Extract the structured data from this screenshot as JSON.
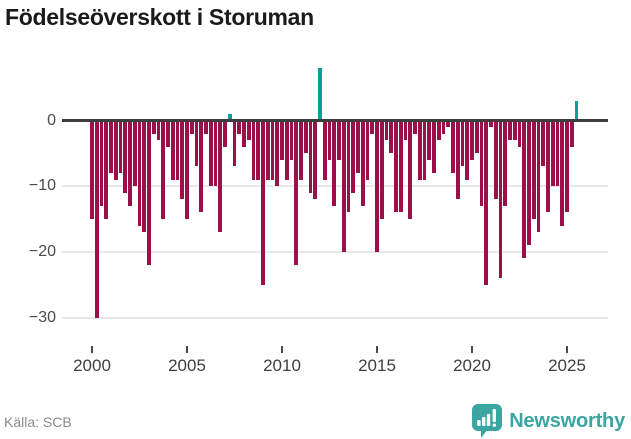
{
  "header": {
    "title": "Födelseöverskott i Storuman"
  },
  "footer": {
    "source_label": "Källa: SCB",
    "brand_name": "Newsworthy"
  },
  "colors": {
    "negative_bar": "#9b1048",
    "positive_bar": "#0b9f98",
    "axis_line": "#3d3d3d",
    "gridline": "#e8e8e8",
    "brand_teal": "#3aa5a1"
  },
  "chart_data": {
    "type": "bar",
    "title": "Födelseöverskott i Storuman",
    "frequency": "quarterly",
    "x_start": "2000 Q1",
    "x_end": "2025 Q3",
    "x_tick_labels": [
      "2000",
      "2005",
      "2010",
      "2015",
      "2020",
      "2025"
    ],
    "y_ticks": [
      0,
      -10,
      -20,
      -30
    ],
    "y_tick_labels": [
      "0",
      "−10",
      "−20",
      "−30"
    ],
    "ylim": [
      -32,
      9
    ],
    "grid": "horizontal",
    "legend": "none",
    "negative_color": "#9b1048",
    "positive_color": "#0b9f98",
    "series": [
      {
        "name": "Födelseöverskott",
        "values": [
          -15,
          -30,
          -13,
          -15,
          -8,
          -9,
          -8,
          -11,
          -13,
          -10,
          -16,
          -17,
          -22,
          -2,
          -3,
          -15,
          -4,
          -9,
          -9,
          -12,
          -15,
          -2,
          -7,
          -14,
          -2,
          -10,
          -10,
          -17,
          -4,
          1,
          -7,
          -2,
          -4,
          -3,
          -9,
          -9,
          -25,
          -9,
          -9,
          -10,
          -6,
          -9,
          -6,
          -22,
          -9,
          -5,
          -11,
          -12,
          8,
          -9,
          -6,
          -13,
          -6,
          -20,
          -14,
          -11,
          -8,
          -13,
          -9,
          -2,
          -20,
          -15,
          -3,
          -5,
          -14,
          -14,
          -3,
          -15,
          -2,
          -9,
          -9,
          -6,
          -8,
          -3,
          -2,
          -1,
          -8,
          -12,
          -7,
          -9,
          -6,
          -5,
          -13,
          -25,
          -1,
          -12,
          -24,
          -13,
          -3,
          -3,
          -4,
          -21,
          -19,
          -15,
          -17,
          -7,
          -14,
          -10,
          -10,
          -16,
          -14,
          -4,
          3
        ]
      }
    ]
  }
}
